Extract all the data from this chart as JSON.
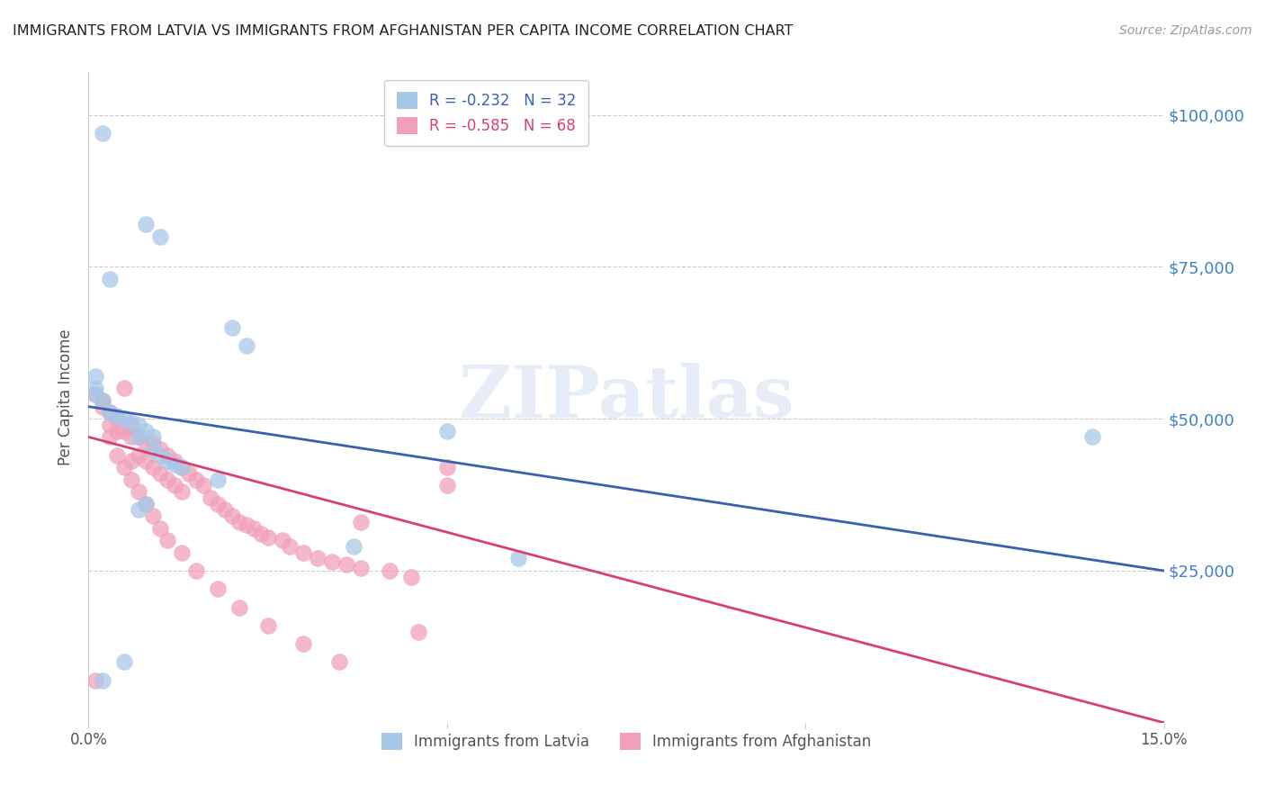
{
  "title": "IMMIGRANTS FROM LATVIA VS IMMIGRANTS FROM AFGHANISTAN PER CAPITA INCOME CORRELATION CHART",
  "source": "Source: ZipAtlas.com",
  "ylabel": "Per Capita Income",
  "yticks": [
    0,
    25000,
    50000,
    75000,
    100000
  ],
  "ytick_labels": [
    "",
    "$25,000",
    "$50,000",
    "$75,000",
    "$100,000"
  ],
  "xlim": [
    0.0,
    0.15
  ],
  "ylim": [
    0,
    107000
  ],
  "legend_label1": "Immigrants from Latvia",
  "legend_label2": "Immigrants from Afghanistan",
  "legend_entry1": "R = -0.232   N = 32",
  "legend_entry2": "R = -0.585   N = 68",
  "latvia_color": "#a8c8e8",
  "afghanistan_color": "#f0a0b8",
  "line_latvia_color": "#3a60b0",
  "line_afghanistan_color": "#d84070",
  "background_color": "#ffffff",
  "title_color": "#222222",
  "right_label_color": "#4080c8",
  "watermark_text": "ZIPatlas",
  "latvia_x": [
    0.002,
    0.008,
    0.01,
    0.003,
    0.02,
    0.022,
    0.001,
    0.001,
    0.001,
    0.002,
    0.003,
    0.004,
    0.005,
    0.006,
    0.007,
    0.007,
    0.008,
    0.009,
    0.009,
    0.01,
    0.011,
    0.012,
    0.013,
    0.018,
    0.06,
    0.002,
    0.005,
    0.007,
    0.008,
    0.05,
    0.037,
    0.14
  ],
  "latvia_y": [
    97000,
    82000,
    80000,
    73000,
    65000,
    62000,
    57000,
    55000,
    54000,
    53000,
    51000,
    50500,
    50000,
    49500,
    49000,
    47000,
    48000,
    47000,
    45000,
    44000,
    43000,
    42500,
    42000,
    40000,
    27000,
    7000,
    10000,
    35000,
    36000,
    48000,
    29000,
    47000
  ],
  "afghanistan_x": [
    0.001,
    0.002,
    0.003,
    0.003,
    0.004,
    0.004,
    0.005,
    0.005,
    0.006,
    0.006,
    0.007,
    0.007,
    0.008,
    0.008,
    0.009,
    0.009,
    0.01,
    0.01,
    0.011,
    0.011,
    0.012,
    0.012,
    0.013,
    0.013,
    0.014,
    0.015,
    0.016,
    0.017,
    0.018,
    0.019,
    0.02,
    0.021,
    0.022,
    0.023,
    0.024,
    0.025,
    0.027,
    0.028,
    0.03,
    0.032,
    0.034,
    0.036,
    0.038,
    0.042,
    0.045,
    0.05,
    0.002,
    0.003,
    0.004,
    0.005,
    0.006,
    0.007,
    0.008,
    0.009,
    0.01,
    0.011,
    0.013,
    0.015,
    0.018,
    0.021,
    0.025,
    0.03,
    0.035,
    0.038,
    0.046,
    0.05,
    0.001,
    0.006
  ],
  "afghanistan_y": [
    54000,
    53000,
    51000,
    49000,
    50000,
    48000,
    48000,
    55000,
    47000,
    49000,
    47000,
    44000,
    46000,
    43000,
    46000,
    42000,
    45000,
    41000,
    44000,
    40000,
    43000,
    39000,
    42000,
    38000,
    41000,
    40000,
    39000,
    37000,
    36000,
    35000,
    34000,
    33000,
    32500,
    32000,
    31000,
    30500,
    30000,
    29000,
    28000,
    27000,
    26500,
    26000,
    25500,
    25000,
    24000,
    39000,
    52000,
    47000,
    44000,
    42000,
    40000,
    38000,
    36000,
    34000,
    32000,
    30000,
    28000,
    25000,
    22000,
    19000,
    16000,
    13000,
    10000,
    33000,
    15000,
    42000,
    7000,
    43000
  ]
}
